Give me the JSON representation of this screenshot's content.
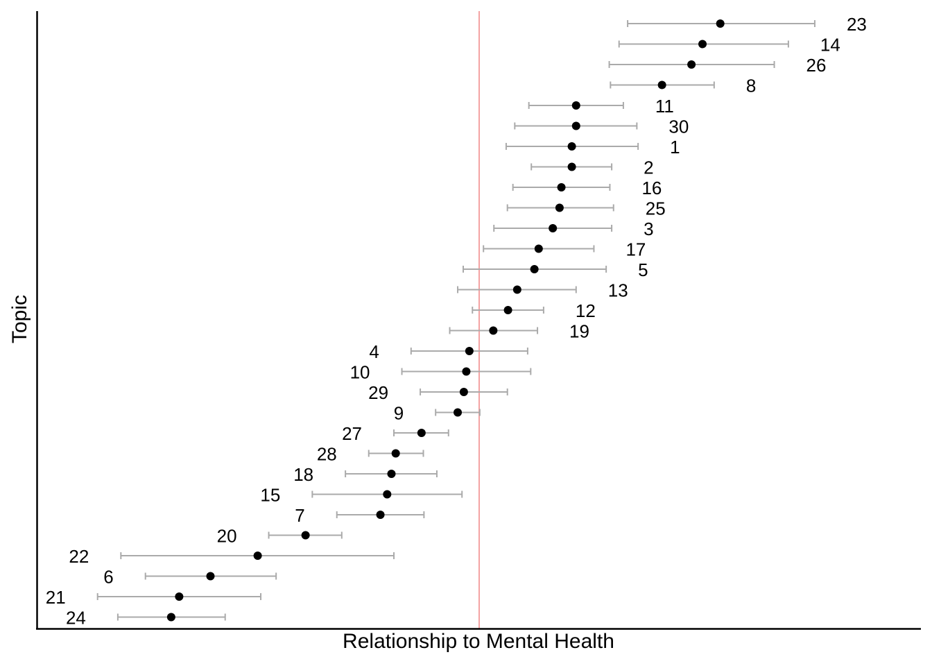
{
  "chart_data": {
    "type": "scatter",
    "subtype": "coefficient-plot-with-error-bars",
    "title": "",
    "xlabel": "Relationship to Mental Health",
    "ylabel": "Topic",
    "xlim": [
      -0.72,
      0.72
    ],
    "reference_line": {
      "x": 0.0,
      "color": "#f4a3a3"
    },
    "grid": false,
    "legend": "none",
    "colors": {
      "point": "#000000",
      "error_bar": "#aaaaaa",
      "axis": "#000000",
      "reference": "#f4a3a3"
    },
    "points": [
      {
        "topic": "23",
        "estimate": 0.393,
        "lower": 0.242,
        "upper": 0.547,
        "label_side": "right"
      },
      {
        "topic": "14",
        "estimate": 0.364,
        "lower": 0.228,
        "upper": 0.504,
        "label_side": "right"
      },
      {
        "topic": "26",
        "estimate": 0.346,
        "lower": 0.212,
        "upper": 0.481,
        "label_side": "right"
      },
      {
        "topic": "8",
        "estimate": 0.298,
        "lower": 0.214,
        "upper": 0.383,
        "label_side": "right"
      },
      {
        "topic": "11",
        "estimate": 0.158,
        "lower": 0.081,
        "upper": 0.235,
        "label_side": "right"
      },
      {
        "topic": "30",
        "estimate": 0.158,
        "lower": 0.058,
        "upper": 0.257,
        "label_side": "right"
      },
      {
        "topic": "1",
        "estimate": 0.151,
        "lower": 0.044,
        "upper": 0.259,
        "label_side": "right"
      },
      {
        "topic": "2",
        "estimate": 0.151,
        "lower": 0.085,
        "upper": 0.216,
        "label_side": "right"
      },
      {
        "topic": "16",
        "estimate": 0.134,
        "lower": 0.055,
        "upper": 0.213,
        "label_side": "right"
      },
      {
        "topic": "25",
        "estimate": 0.131,
        "lower": 0.046,
        "upper": 0.219,
        "label_side": "right"
      },
      {
        "topic": "3",
        "estimate": 0.12,
        "lower": 0.024,
        "upper": 0.216,
        "label_side": "right"
      },
      {
        "topic": "17",
        "estimate": 0.097,
        "lower": 0.007,
        "upper": 0.187,
        "label_side": "right"
      },
      {
        "topic": "5",
        "estimate": 0.09,
        "lower": -0.026,
        "upper": 0.207,
        "label_side": "right"
      },
      {
        "topic": "13",
        "estimate": 0.062,
        "lower": -0.035,
        "upper": 0.158,
        "label_side": "right"
      },
      {
        "topic": "12",
        "estimate": 0.047,
        "lower": -0.011,
        "upper": 0.105,
        "label_side": "right"
      },
      {
        "topic": "19",
        "estimate": 0.023,
        "lower": -0.048,
        "upper": 0.095,
        "label_side": "right"
      },
      {
        "topic": "4",
        "estimate": -0.016,
        "lower": -0.111,
        "upper": 0.079,
        "label_side": "left"
      },
      {
        "topic": "10",
        "estimate": -0.021,
        "lower": -0.126,
        "upper": 0.084,
        "label_side": "left"
      },
      {
        "topic": "29",
        "estimate": -0.025,
        "lower": -0.096,
        "upper": 0.046,
        "label_side": "left"
      },
      {
        "topic": "9",
        "estimate": -0.035,
        "lower": -0.071,
        "upper": 0.001,
        "label_side": "left"
      },
      {
        "topic": "27",
        "estimate": -0.094,
        "lower": -0.139,
        "upper": -0.05,
        "label_side": "left"
      },
      {
        "topic": "28",
        "estimate": -0.136,
        "lower": -0.18,
        "upper": -0.091,
        "label_side": "left"
      },
      {
        "topic": "18",
        "estimate": -0.143,
        "lower": -0.218,
        "upper": -0.069,
        "label_side": "left"
      },
      {
        "topic": "15",
        "estimate": -0.15,
        "lower": -0.272,
        "upper": -0.028,
        "label_side": "left"
      },
      {
        "topic": "7",
        "estimate": -0.161,
        "lower": -0.232,
        "upper": -0.09,
        "label_side": "left"
      },
      {
        "topic": "20",
        "estimate": -0.283,
        "lower": -0.343,
        "upper": -0.224,
        "label_side": "left"
      },
      {
        "topic": "22",
        "estimate": -0.361,
        "lower": -0.584,
        "upper": -0.139,
        "label_side": "left"
      },
      {
        "topic": "6",
        "estimate": -0.438,
        "lower": -0.544,
        "upper": -0.331,
        "label_side": "left"
      },
      {
        "topic": "21",
        "estimate": -0.489,
        "lower": -0.622,
        "upper": -0.356,
        "label_side": "left"
      },
      {
        "topic": "24",
        "estimate": -0.502,
        "lower": -0.589,
        "upper": -0.414,
        "label_side": "left"
      }
    ]
  }
}
